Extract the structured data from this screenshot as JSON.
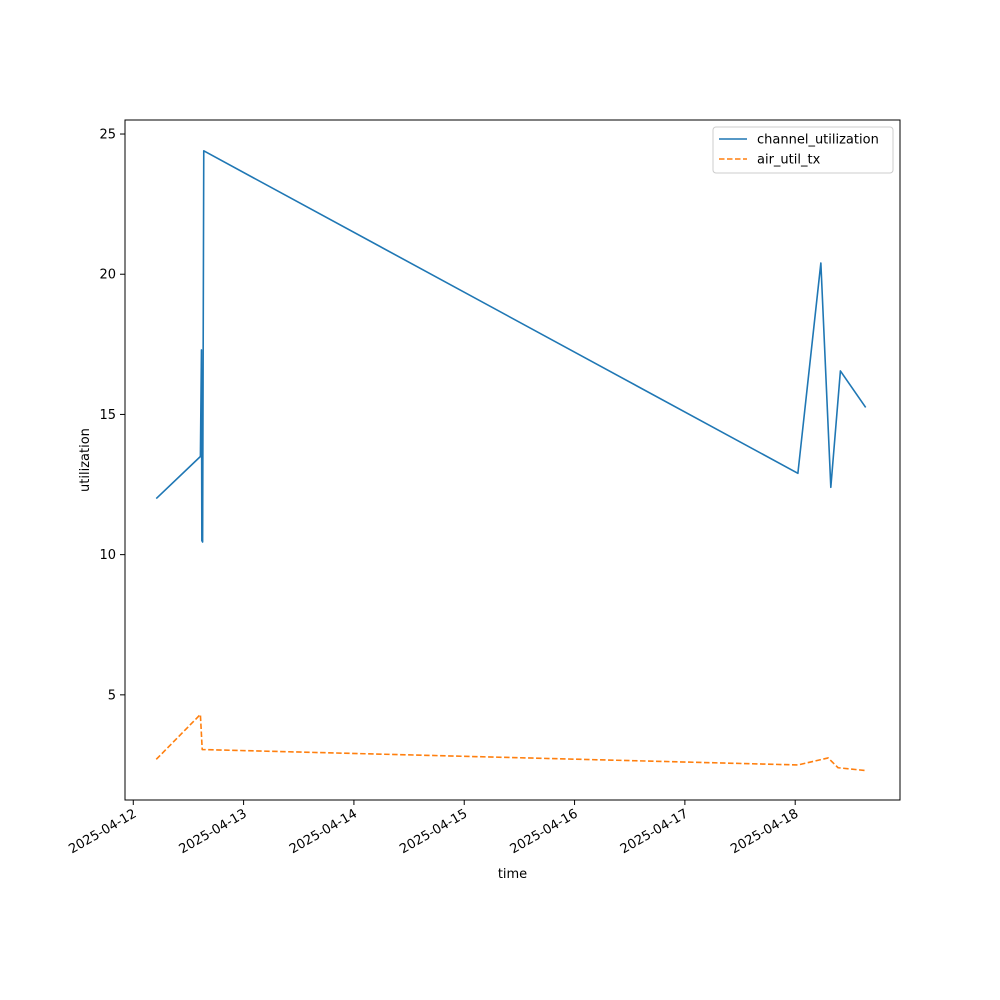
{
  "chart_data": {
    "type": "line",
    "title": "",
    "xlabel": "time",
    "ylabel": "utilization",
    "x_type": "datetime",
    "xlim": [
      "2025-04-11T22:12",
      "2025-04-18T22:48"
    ],
    "ylim": [
      1.25,
      25.5
    ],
    "x_ticks": [
      "2025-04-12",
      "2025-04-13",
      "2025-04-14",
      "2025-04-15",
      "2025-04-16",
      "2025-04-17",
      "2025-04-18"
    ],
    "y_ticks": [
      5,
      10,
      15,
      20,
      25
    ],
    "grid": false,
    "legend": "top-right",
    "series": [
      {
        "name": "channel_utilization",
        "color": "#1f77b4",
        "linestyle": "solid",
        "points": [
          [
            "2025-04-12T05:00",
            12.0
          ],
          [
            "2025-04-12T14:36",
            13.5
          ],
          [
            "2025-04-12T14:50",
            17.3
          ],
          [
            "2025-04-12T14:55",
            10.5
          ],
          [
            "2025-04-12T15:05",
            10.45
          ],
          [
            "2025-04-12T15:20",
            24.4
          ],
          [
            "2025-04-18T00:35",
            12.9
          ],
          [
            "2025-04-18T05:35",
            20.4
          ],
          [
            "2025-04-18T07:45",
            12.4
          ],
          [
            "2025-04-18T09:50",
            16.55
          ],
          [
            "2025-04-18T15:20",
            15.25
          ]
        ]
      },
      {
        "name": "air_util_tx",
        "color": "#ff7f0e",
        "linestyle": "dashed",
        "points": [
          [
            "2025-04-12T05:00",
            2.7
          ],
          [
            "2025-04-12T14:36",
            4.3
          ],
          [
            "2025-04-12T15:00",
            3.05
          ],
          [
            "2025-04-18T00:35",
            2.5
          ],
          [
            "2025-04-18T07:10",
            2.75
          ],
          [
            "2025-04-18T09:20",
            2.4
          ],
          [
            "2025-04-18T15:20",
            2.3
          ]
        ]
      }
    ]
  }
}
